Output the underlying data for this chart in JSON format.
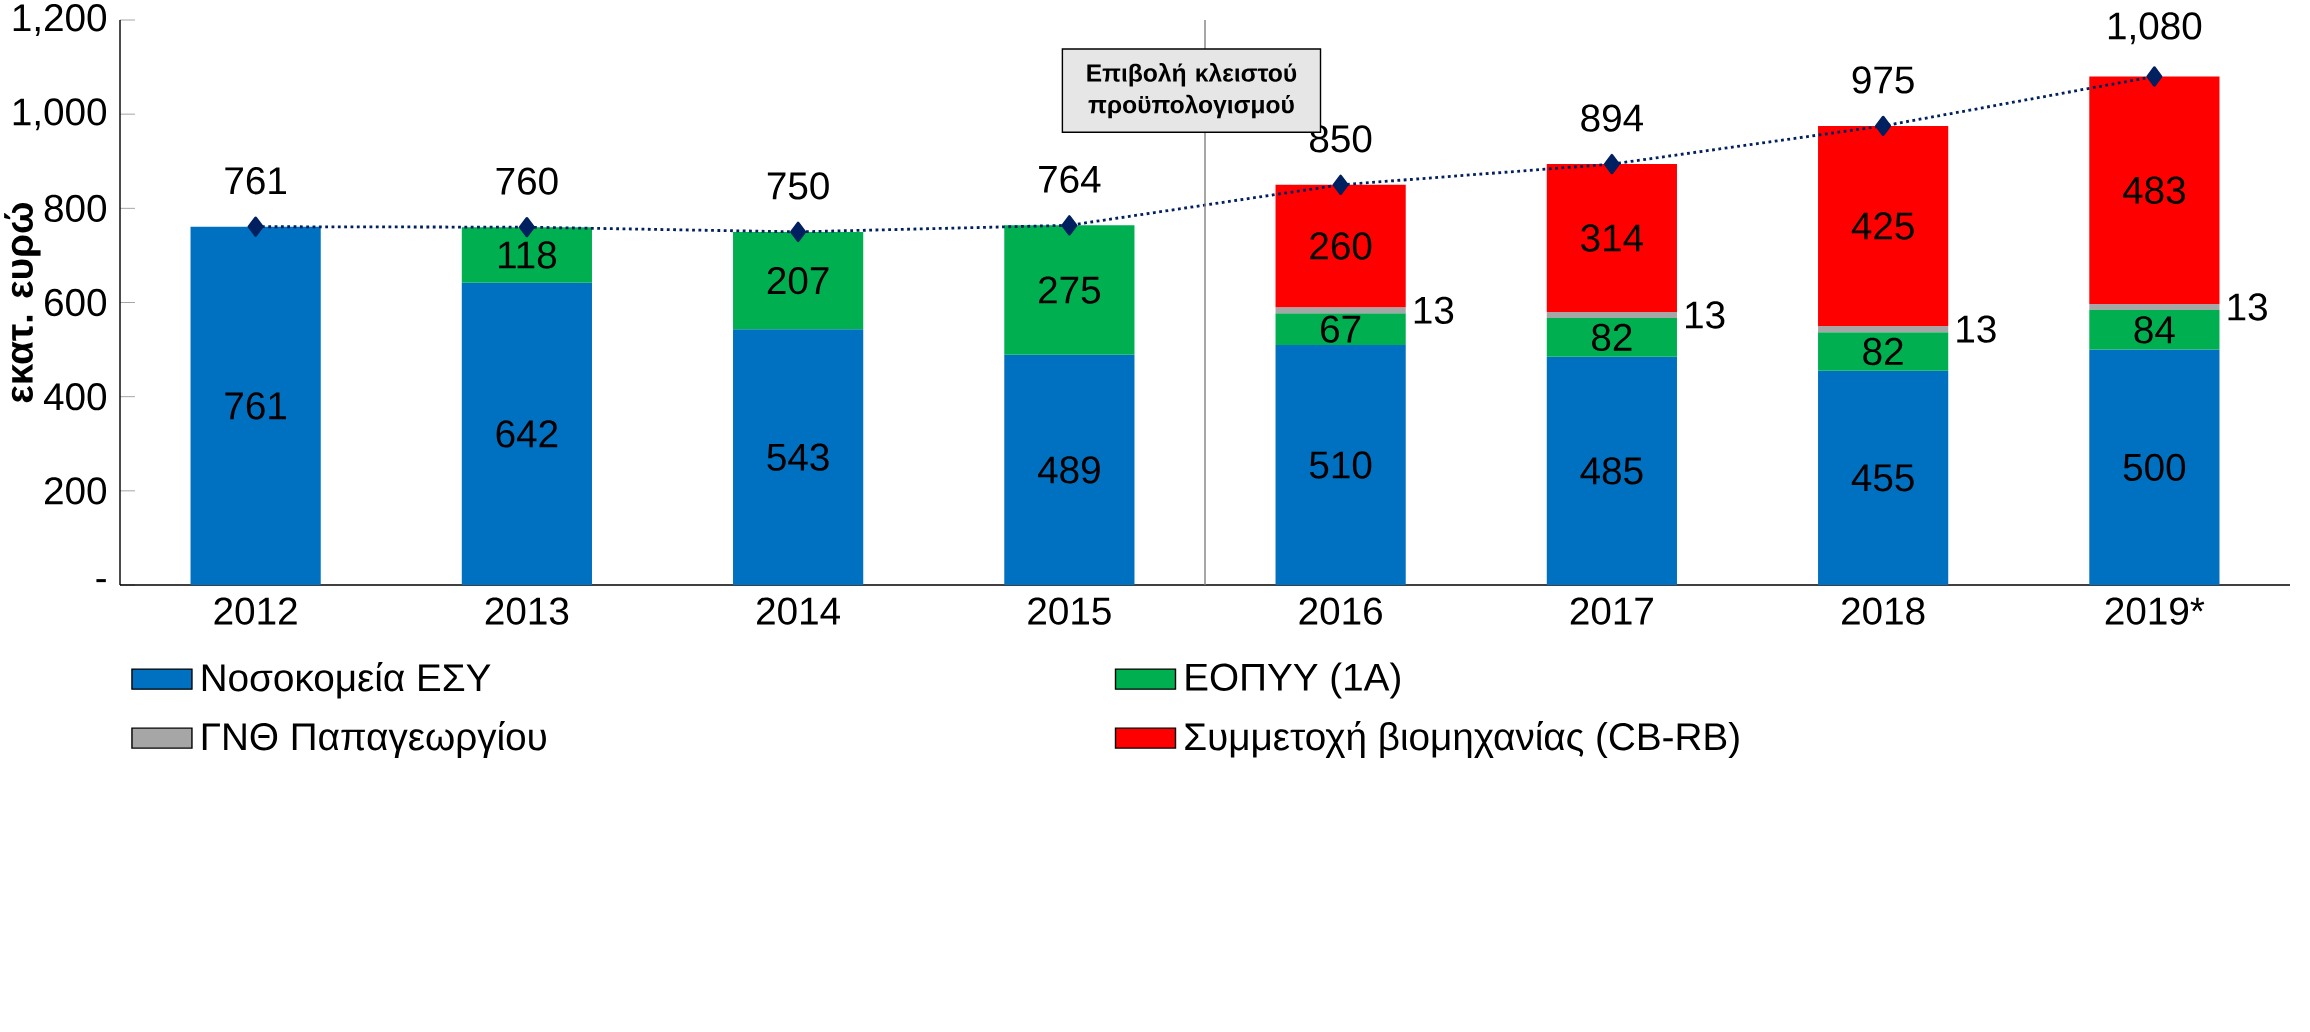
{
  "chart_data": {
    "type": "bar",
    "stacked": true,
    "ylabel": "εκατ. ευρώ",
    "categories": [
      "2012",
      "2013",
      "2014",
      "2015",
      "2016",
      "2017",
      "2018",
      "2019*"
    ],
    "series": [
      {
        "name": "Νοσοκομεία ΕΣΥ",
        "color": "#0070c0",
        "values": [
          761,
          642,
          543,
          489,
          510,
          485,
          455,
          500
        ]
      },
      {
        "name": "ΕΟΠΥΥ (1Α)",
        "color": "#00b050",
        "values": [
          null,
          118,
          207,
          275,
          67,
          82,
          82,
          84
        ]
      },
      {
        "name": "ΓΝΘ Παπαγεωργίου",
        "color": "#a6a6a6",
        "values": [
          null,
          null,
          null,
          null,
          13,
          13,
          13,
          13
        ]
      },
      {
        "name": "Συμμετοχή βιομηχανίας (CB-RB)",
        "color": "#ff0000",
        "values": [
          null,
          null,
          null,
          null,
          260,
          314,
          425,
          483
        ]
      },
      {
        "type": "line",
        "color": "#002060",
        "marker": "diamond",
        "line_style": "dotted",
        "values": [
          761,
          760,
          750,
          764,
          850,
          894,
          975,
          1080
        ],
        "value_labels": [
          "761",
          "760",
          "750",
          "764",
          "850",
          "894",
          "975",
          "1,080"
        ]
      }
    ],
    "data_labels": true,
    "ylim": [
      0,
      1200
    ],
    "yticks": [
      {
        "value": 0,
        "label": "-"
      },
      200,
      400,
      600,
      800,
      {
        "value": 1000,
        "label": "1,000"
      },
      {
        "value": 1200,
        "label": "1,200"
      }
    ],
    "annotations": [
      "Επιβολή κλειστού προϋπολογισμού"
    ],
    "legend": "bottom"
  }
}
